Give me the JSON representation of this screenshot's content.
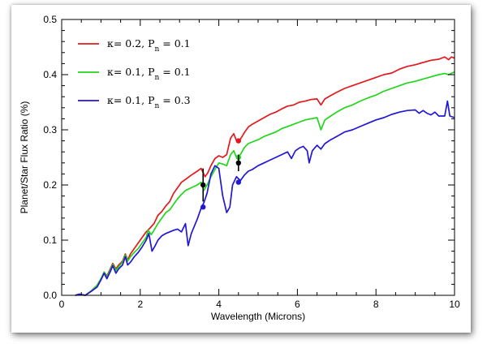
{
  "chart_data": {
    "type": "line",
    "xlabel": "Wavelength (Microns)",
    "ylabel": "Planet/Star Flux Ratio (%)",
    "xlim": [
      0,
      10
    ],
    "ylim": [
      0,
      0.5
    ],
    "xticks": [
      0,
      2,
      4,
      6,
      8,
      10
    ],
    "xtick_labels": [
      "0",
      "2",
      "4",
      "6",
      "8",
      "10"
    ],
    "yticks": [
      0,
      0.1,
      0.2,
      0.3,
      0.4,
      0.5
    ],
    "ytick_labels": [
      "0.0",
      "0.1",
      "0.2",
      "0.3",
      "0.4",
      "0.5"
    ],
    "grid": false,
    "legend_position": "top-left",
    "series": [
      {
        "name": "κ= 0.2,  Pn = 0.1",
        "legend": {
          "prefix": "κ= 0.2,  P",
          "sub": "n",
          "suffix": " = 0.1"
        },
        "color": "#e3191c",
        "points": [
          [
            0.35,
            0.0
          ],
          [
            0.45,
            0.002
          ],
          [
            0.6,
            0.0
          ],
          [
            0.75,
            0.008
          ],
          [
            0.9,
            0.018
          ],
          [
            1.0,
            0.03
          ],
          [
            1.08,
            0.042
          ],
          [
            1.15,
            0.035
          ],
          [
            1.25,
            0.05
          ],
          [
            1.3,
            0.058
          ],
          [
            1.38,
            0.048
          ],
          [
            1.45,
            0.055
          ],
          [
            1.55,
            0.062
          ],
          [
            1.62,
            0.075
          ],
          [
            1.68,
            0.064
          ],
          [
            1.75,
            0.075
          ],
          [
            1.85,
            0.085
          ],
          [
            1.95,
            0.095
          ],
          [
            2.05,
            0.105
          ],
          [
            2.15,
            0.115
          ],
          [
            2.25,
            0.122
          ],
          [
            2.35,
            0.13
          ],
          [
            2.45,
            0.145
          ],
          [
            2.55,
            0.152
          ],
          [
            2.65,
            0.162
          ],
          [
            2.75,
            0.17
          ],
          [
            2.85,
            0.185
          ],
          [
            2.95,
            0.195
          ],
          [
            3.05,
            0.205
          ],
          [
            3.15,
            0.21
          ],
          [
            3.3,
            0.218
          ],
          [
            3.45,
            0.225
          ],
          [
            3.55,
            0.23
          ],
          [
            3.65,
            0.215
          ],
          [
            3.72,
            0.222
          ],
          [
            3.8,
            0.235
          ],
          [
            3.9,
            0.248
          ],
          [
            4.0,
            0.253
          ],
          [
            4.1,
            0.25
          ],
          [
            4.2,
            0.255
          ],
          [
            4.3,
            0.285
          ],
          [
            4.38,
            0.293
          ],
          [
            4.45,
            0.28
          ],
          [
            4.55,
            0.283
          ],
          [
            4.65,
            0.295
          ],
          [
            4.75,
            0.305
          ],
          [
            4.85,
            0.31
          ],
          [
            5.0,
            0.316
          ],
          [
            5.15,
            0.322
          ],
          [
            5.3,
            0.328
          ],
          [
            5.45,
            0.332
          ],
          [
            5.6,
            0.338
          ],
          [
            5.75,
            0.343
          ],
          [
            5.9,
            0.345
          ],
          [
            6.05,
            0.35
          ],
          [
            6.2,
            0.352
          ],
          [
            6.35,
            0.355
          ],
          [
            6.5,
            0.356
          ],
          [
            6.6,
            0.345
          ],
          [
            6.7,
            0.356
          ],
          [
            6.85,
            0.362
          ],
          [
            7.0,
            0.368
          ],
          [
            7.2,
            0.375
          ],
          [
            7.4,
            0.38
          ],
          [
            7.6,
            0.385
          ],
          [
            7.8,
            0.39
          ],
          [
            8.0,
            0.395
          ],
          [
            8.2,
            0.4
          ],
          [
            8.4,
            0.403
          ],
          [
            8.6,
            0.41
          ],
          [
            8.8,
            0.415
          ],
          [
            9.0,
            0.418
          ],
          [
            9.2,
            0.422
          ],
          [
            9.4,
            0.426
          ],
          [
            9.6,
            0.428
          ],
          [
            9.75,
            0.432
          ],
          [
            9.85,
            0.427
          ],
          [
            9.92,
            0.432
          ],
          [
            10.0,
            0.43
          ]
        ]
      },
      {
        "name": "κ= 0.1,  Pn = 0.1",
        "legend": {
          "prefix": "κ= 0.1,  P",
          "sub": "n",
          "suffix": " = 0.1"
        },
        "color": "#22d61c",
        "points": [
          [
            0.35,
            0.0
          ],
          [
            0.45,
            0.002
          ],
          [
            0.6,
            0.0
          ],
          [
            0.75,
            0.008
          ],
          [
            0.9,
            0.018
          ],
          [
            1.0,
            0.03
          ],
          [
            1.08,
            0.042
          ],
          [
            1.15,
            0.033
          ],
          [
            1.25,
            0.048
          ],
          [
            1.3,
            0.056
          ],
          [
            1.38,
            0.045
          ],
          [
            1.45,
            0.052
          ],
          [
            1.55,
            0.06
          ],
          [
            1.62,
            0.073
          ],
          [
            1.68,
            0.062
          ],
          [
            1.75,
            0.07
          ],
          [
            1.85,
            0.078
          ],
          [
            1.95,
            0.085
          ],
          [
            2.05,
            0.095
          ],
          [
            2.15,
            0.105
          ],
          [
            2.2,
            0.118
          ],
          [
            2.28,
            0.11
          ],
          [
            2.35,
            0.118
          ],
          [
            2.45,
            0.13
          ],
          [
            2.55,
            0.14
          ],
          [
            2.65,
            0.15
          ],
          [
            2.75,
            0.155
          ],
          [
            2.85,
            0.165
          ],
          [
            2.95,
            0.175
          ],
          [
            3.05,
            0.183
          ],
          [
            3.15,
            0.19
          ],
          [
            3.3,
            0.195
          ],
          [
            3.45,
            0.2
          ],
          [
            3.55,
            0.205
          ],
          [
            3.62,
            0.19
          ],
          [
            3.7,
            0.2
          ],
          [
            3.8,
            0.215
          ],
          [
            3.9,
            0.228
          ],
          [
            4.0,
            0.24
          ],
          [
            4.1,
            0.238
          ],
          [
            4.2,
            0.235
          ],
          [
            4.3,
            0.255
          ],
          [
            4.38,
            0.262
          ],
          [
            4.45,
            0.25
          ],
          [
            4.55,
            0.255
          ],
          [
            4.65,
            0.268
          ],
          [
            4.75,
            0.275
          ],
          [
            4.85,
            0.278
          ],
          [
            5.0,
            0.282
          ],
          [
            5.15,
            0.288
          ],
          [
            5.3,
            0.292
          ],
          [
            5.45,
            0.296
          ],
          [
            5.6,
            0.302
          ],
          [
            5.75,
            0.306
          ],
          [
            5.9,
            0.31
          ],
          [
            6.05,
            0.314
          ],
          [
            6.2,
            0.318
          ],
          [
            6.35,
            0.32
          ],
          [
            6.5,
            0.322
          ],
          [
            6.6,
            0.3
          ],
          [
            6.7,
            0.318
          ],
          [
            6.85,
            0.325
          ],
          [
            7.0,
            0.332
          ],
          [
            7.2,
            0.34
          ],
          [
            7.4,
            0.345
          ],
          [
            7.6,
            0.352
          ],
          [
            7.8,
            0.358
          ],
          [
            8.0,
            0.363
          ],
          [
            8.2,
            0.37
          ],
          [
            8.4,
            0.375
          ],
          [
            8.6,
            0.38
          ],
          [
            8.8,
            0.385
          ],
          [
            9.0,
            0.388
          ],
          [
            9.2,
            0.392
          ],
          [
            9.4,
            0.396
          ],
          [
            9.6,
            0.4
          ],
          [
            9.75,
            0.402
          ],
          [
            9.85,
            0.4
          ],
          [
            10.0,
            0.405
          ]
        ]
      },
      {
        "name": "κ= 0.1,  Pn = 0.3",
        "legend": {
          "prefix": "κ= 0.1,  P",
          "sub": "n",
          "suffix": " = 0.3"
        },
        "color": "#2117d4",
        "points": [
          [
            0.35,
            0.0
          ],
          [
            0.45,
            0.002
          ],
          [
            0.6,
            0.0
          ],
          [
            0.75,
            0.007
          ],
          [
            0.9,
            0.015
          ],
          [
            1.0,
            0.028
          ],
          [
            1.08,
            0.04
          ],
          [
            1.15,
            0.03
          ],
          [
            1.25,
            0.045
          ],
          [
            1.3,
            0.054
          ],
          [
            1.38,
            0.04
          ],
          [
            1.45,
            0.048
          ],
          [
            1.55,
            0.055
          ],
          [
            1.62,
            0.07
          ],
          [
            1.68,
            0.055
          ],
          [
            1.75,
            0.06
          ],
          [
            1.85,
            0.07
          ],
          [
            1.95,
            0.078
          ],
          [
            2.05,
            0.088
          ],
          [
            2.15,
            0.1
          ],
          [
            2.22,
            0.112
          ],
          [
            2.3,
            0.08
          ],
          [
            2.38,
            0.09
          ],
          [
            2.45,
            0.1
          ],
          [
            2.55,
            0.108
          ],
          [
            2.65,
            0.112
          ],
          [
            2.75,
            0.115
          ],
          [
            2.85,
            0.118
          ],
          [
            2.95,
            0.12
          ],
          [
            3.05,
            0.115
          ],
          [
            3.15,
            0.13
          ],
          [
            3.22,
            0.09
          ],
          [
            3.3,
            0.112
          ],
          [
            3.45,
            0.138
          ],
          [
            3.55,
            0.158
          ],
          [
            3.62,
            0.168
          ],
          [
            3.7,
            0.185
          ],
          [
            3.8,
            0.22
          ],
          [
            3.9,
            0.235
          ],
          [
            4.0,
            0.23
          ],
          [
            4.1,
            0.18
          ],
          [
            4.2,
            0.15
          ],
          [
            4.28,
            0.16
          ],
          [
            4.35,
            0.2
          ],
          [
            4.45,
            0.215
          ],
          [
            4.55,
            0.208
          ],
          [
            4.65,
            0.218
          ],
          [
            4.75,
            0.225
          ],
          [
            4.85,
            0.228
          ],
          [
            5.0,
            0.235
          ],
          [
            5.15,
            0.24
          ],
          [
            5.3,
            0.245
          ],
          [
            5.45,
            0.25
          ],
          [
            5.6,
            0.255
          ],
          [
            5.75,
            0.26
          ],
          [
            5.85,
            0.248
          ],
          [
            5.95,
            0.262
          ],
          [
            6.05,
            0.267
          ],
          [
            6.15,
            0.27
          ],
          [
            6.25,
            0.262
          ],
          [
            6.3,
            0.24
          ],
          [
            6.38,
            0.262
          ],
          [
            6.5,
            0.272
          ],
          [
            6.6,
            0.265
          ],
          [
            6.7,
            0.275
          ],
          [
            6.85,
            0.282
          ],
          [
            7.0,
            0.288
          ],
          [
            7.2,
            0.296
          ],
          [
            7.4,
            0.3
          ],
          [
            7.6,
            0.306
          ],
          [
            7.8,
            0.312
          ],
          [
            8.0,
            0.318
          ],
          [
            8.2,
            0.322
          ],
          [
            8.4,
            0.328
          ],
          [
            8.6,
            0.332
          ],
          [
            8.8,
            0.335
          ],
          [
            9.0,
            0.336
          ],
          [
            9.1,
            0.33
          ],
          [
            9.2,
            0.335
          ],
          [
            9.3,
            0.33
          ],
          [
            9.4,
            0.327
          ],
          [
            9.5,
            0.332
          ],
          [
            9.6,
            0.325
          ],
          [
            9.75,
            0.325
          ],
          [
            9.82,
            0.352
          ],
          [
            9.88,
            0.325
          ],
          [
            10.0,
            0.322
          ]
        ]
      }
    ],
    "observations": [
      {
        "x": 3.6,
        "y": 0.2,
        "err": 0.03,
        "color": "#000000"
      },
      {
        "x": 4.5,
        "y": 0.24,
        "err": 0.015,
        "color": "#000000"
      }
    ],
    "model_markers": [
      {
        "x": 3.6,
        "y": 0.16,
        "color": "#2117d4"
      },
      {
        "x": 4.5,
        "y": 0.205,
        "color": "#2117d4"
      },
      {
        "x": 4.5,
        "y": 0.28,
        "color": "#e3191c"
      },
      {
        "x": 4.5,
        "y": 0.25,
        "color": "#22d61c"
      }
    ]
  }
}
